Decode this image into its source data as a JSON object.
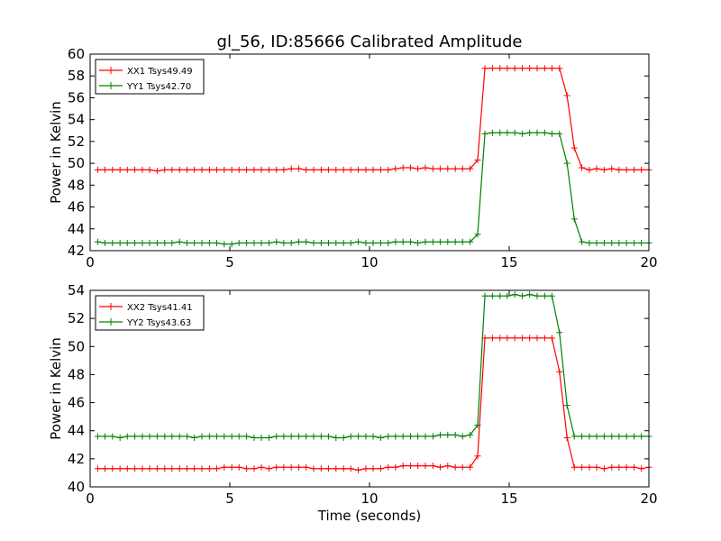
{
  "title": "gl_56, ID:85666 Calibrated Amplitude",
  "colors": {
    "red": "#ff0000",
    "green": "#008000"
  },
  "chart_data": [
    {
      "type": "line",
      "ylabel": "Power in Kelvin",
      "xlabel": "",
      "xlim": [
        0,
        20
      ],
      "ylim": [
        42,
        60
      ],
      "xticks": [
        0,
        5,
        10,
        15,
        20
      ],
      "yticks": [
        42,
        44,
        46,
        48,
        50,
        52,
        54,
        56,
        58,
        60
      ],
      "legend_position": "top-left",
      "grid": false,
      "series": [
        {
          "name": "XX1 Tsys49.49",
          "color": "#ff0000",
          "marker": "+",
          "x": [
            0.27,
            0.53,
            0.8,
            1.07,
            1.33,
            1.6,
            1.87,
            2.13,
            2.4,
            2.67,
            2.93,
            3.2,
            3.47,
            3.73,
            4.0,
            4.27,
            4.53,
            4.8,
            5.07,
            5.33,
            5.6,
            5.87,
            6.13,
            6.4,
            6.67,
            6.93,
            7.2,
            7.47,
            7.73,
            8.0,
            8.27,
            8.53,
            8.8,
            9.07,
            9.33,
            9.6,
            9.87,
            10.13,
            10.4,
            10.67,
            10.93,
            11.2,
            11.47,
            11.73,
            12.0,
            12.27,
            12.53,
            12.8,
            13.07,
            13.33,
            13.6,
            13.87,
            14.13,
            14.4,
            14.67,
            14.93,
            15.2,
            15.47,
            15.73,
            16.0,
            16.27,
            16.53,
            16.8,
            17.07,
            17.33,
            17.6,
            17.87,
            18.13,
            18.4,
            18.67,
            18.93,
            19.2,
            19.47,
            19.73,
            20.0
          ],
          "y": [
            49.4,
            49.4,
            49.4,
            49.4,
            49.4,
            49.4,
            49.4,
            49.4,
            49.3,
            49.4,
            49.4,
            49.4,
            49.4,
            49.4,
            49.4,
            49.4,
            49.4,
            49.4,
            49.4,
            49.4,
            49.4,
            49.4,
            49.4,
            49.4,
            49.4,
            49.4,
            49.5,
            49.5,
            49.4,
            49.4,
            49.4,
            49.4,
            49.4,
            49.4,
            49.4,
            49.4,
            49.4,
            49.4,
            49.4,
            49.4,
            49.5,
            49.6,
            49.6,
            49.5,
            49.6,
            49.5,
            49.5,
            49.5,
            49.5,
            49.5,
            49.5,
            50.3,
            58.7,
            58.7,
            58.7,
            58.7,
            58.7,
            58.7,
            58.7,
            58.7,
            58.7,
            58.7,
            58.7,
            56.2,
            51.4,
            49.6,
            49.4,
            49.5,
            49.4,
            49.5,
            49.4,
            49.4,
            49.4,
            49.4,
            49.4
          ]
        },
        {
          "name": "YY1 Tsys42.70",
          "color": "#008000",
          "marker": "+",
          "x": [
            0.27,
            0.53,
            0.8,
            1.07,
            1.33,
            1.6,
            1.87,
            2.13,
            2.4,
            2.67,
            2.93,
            3.2,
            3.47,
            3.73,
            4.0,
            4.27,
            4.53,
            4.8,
            5.07,
            5.33,
            5.6,
            5.87,
            6.13,
            6.4,
            6.67,
            6.93,
            7.2,
            7.47,
            7.73,
            8.0,
            8.27,
            8.53,
            8.8,
            9.07,
            9.33,
            9.6,
            9.87,
            10.13,
            10.4,
            10.67,
            10.93,
            11.2,
            11.47,
            11.73,
            12.0,
            12.27,
            12.53,
            12.8,
            13.07,
            13.33,
            13.6,
            13.87,
            14.13,
            14.4,
            14.67,
            14.93,
            15.2,
            15.47,
            15.73,
            16.0,
            16.27,
            16.53,
            16.8,
            17.07,
            17.33,
            17.6,
            17.87,
            18.13,
            18.4,
            18.67,
            18.93,
            19.2,
            19.47,
            19.73,
            20.0
          ],
          "y": [
            42.8,
            42.7,
            42.7,
            42.7,
            42.7,
            42.7,
            42.7,
            42.7,
            42.7,
            42.7,
            42.7,
            42.8,
            42.7,
            42.7,
            42.7,
            42.7,
            42.7,
            42.6,
            42.6,
            42.7,
            42.7,
            42.7,
            42.7,
            42.7,
            42.8,
            42.7,
            42.7,
            42.8,
            42.8,
            42.7,
            42.7,
            42.7,
            42.7,
            42.7,
            42.7,
            42.8,
            42.7,
            42.7,
            42.7,
            42.7,
            42.8,
            42.8,
            42.8,
            42.7,
            42.8,
            42.8,
            42.8,
            42.8,
            42.8,
            42.8,
            42.8,
            43.5,
            52.7,
            52.8,
            52.8,
            52.8,
            52.8,
            52.7,
            52.8,
            52.8,
            52.8,
            52.7,
            52.7,
            50.0,
            44.9,
            42.8,
            42.7,
            42.7,
            42.7,
            42.7,
            42.7,
            42.7,
            42.7,
            42.7,
            42.7
          ]
        }
      ]
    },
    {
      "type": "line",
      "ylabel": "Power in Kelvin",
      "xlabel": "Time (seconds)",
      "xlim": [
        0,
        20
      ],
      "ylim": [
        40,
        54
      ],
      "xticks": [
        0,
        5,
        10,
        15,
        20
      ],
      "yticks": [
        40,
        42,
        44,
        46,
        48,
        50,
        52,
        54
      ],
      "legend_position": "top-left",
      "grid": false,
      "series": [
        {
          "name": "XX2 Tsys41.41",
          "color": "#ff0000",
          "marker": "+",
          "x": [
            0.27,
            0.53,
            0.8,
            1.07,
            1.33,
            1.6,
            1.87,
            2.13,
            2.4,
            2.67,
            2.93,
            3.2,
            3.47,
            3.73,
            4.0,
            4.27,
            4.53,
            4.8,
            5.07,
            5.33,
            5.6,
            5.87,
            6.13,
            6.4,
            6.67,
            6.93,
            7.2,
            7.47,
            7.73,
            8.0,
            8.27,
            8.53,
            8.8,
            9.07,
            9.33,
            9.6,
            9.87,
            10.13,
            10.4,
            10.67,
            10.93,
            11.2,
            11.47,
            11.73,
            12.0,
            12.27,
            12.53,
            12.8,
            13.07,
            13.33,
            13.6,
            13.87,
            14.13,
            14.4,
            14.67,
            14.93,
            15.2,
            15.47,
            15.73,
            16.0,
            16.27,
            16.53,
            16.8,
            17.07,
            17.33,
            17.6,
            17.87,
            18.13,
            18.4,
            18.67,
            18.93,
            19.2,
            19.47,
            19.73,
            20.0
          ],
          "y": [
            41.3,
            41.3,
            41.3,
            41.3,
            41.3,
            41.3,
            41.3,
            41.3,
            41.3,
            41.3,
            41.3,
            41.3,
            41.3,
            41.3,
            41.3,
            41.3,
            41.3,
            41.4,
            41.4,
            41.4,
            41.3,
            41.3,
            41.4,
            41.3,
            41.4,
            41.4,
            41.4,
            41.4,
            41.4,
            41.3,
            41.3,
            41.3,
            41.3,
            41.3,
            41.3,
            41.2,
            41.3,
            41.3,
            41.3,
            41.4,
            41.4,
            41.5,
            41.5,
            41.5,
            41.5,
            41.5,
            41.4,
            41.5,
            41.4,
            41.4,
            41.4,
            42.2,
            50.6,
            50.6,
            50.6,
            50.6,
            50.6,
            50.6,
            50.6,
            50.6,
            50.6,
            50.6,
            48.2,
            43.5,
            41.4,
            41.4,
            41.4,
            41.4,
            41.3,
            41.4,
            41.4,
            41.4,
            41.4,
            41.3,
            41.4
          ]
        },
        {
          "name": "YY2 Tsys43.63",
          "color": "#008000",
          "marker": "+",
          "x": [
            0.27,
            0.53,
            0.8,
            1.07,
            1.33,
            1.6,
            1.87,
            2.13,
            2.4,
            2.67,
            2.93,
            3.2,
            3.47,
            3.73,
            4.0,
            4.27,
            4.53,
            4.8,
            5.07,
            5.33,
            5.6,
            5.87,
            6.13,
            6.4,
            6.67,
            6.93,
            7.2,
            7.47,
            7.73,
            8.0,
            8.27,
            8.53,
            8.8,
            9.07,
            9.33,
            9.6,
            9.87,
            10.13,
            10.4,
            10.67,
            10.93,
            11.2,
            11.47,
            11.73,
            12.0,
            12.27,
            12.53,
            12.8,
            13.07,
            13.33,
            13.6,
            13.87,
            14.13,
            14.4,
            14.67,
            14.93,
            15.2,
            15.47,
            15.73,
            16.0,
            16.27,
            16.53,
            16.8,
            17.07,
            17.33,
            17.6,
            17.87,
            18.13,
            18.4,
            18.67,
            18.93,
            19.2,
            19.47,
            19.73,
            20.0
          ],
          "y": [
            43.6,
            43.6,
            43.6,
            43.5,
            43.6,
            43.6,
            43.6,
            43.6,
            43.6,
            43.6,
            43.6,
            43.6,
            43.6,
            43.5,
            43.6,
            43.6,
            43.6,
            43.6,
            43.6,
            43.6,
            43.6,
            43.5,
            43.5,
            43.5,
            43.6,
            43.6,
            43.6,
            43.6,
            43.6,
            43.6,
            43.6,
            43.6,
            43.5,
            43.5,
            43.6,
            43.6,
            43.6,
            43.6,
            43.5,
            43.6,
            43.6,
            43.6,
            43.6,
            43.6,
            43.6,
            43.6,
            43.7,
            43.7,
            43.7,
            43.6,
            43.7,
            44.4,
            53.6,
            53.6,
            53.6,
            53.6,
            53.7,
            53.6,
            53.7,
            53.6,
            53.6,
            53.6,
            51.0,
            45.8,
            43.6,
            43.6,
            43.6,
            43.6,
            43.6,
            43.6,
            43.6,
            43.6,
            43.6,
            43.6,
            43.6
          ]
        }
      ]
    }
  ]
}
